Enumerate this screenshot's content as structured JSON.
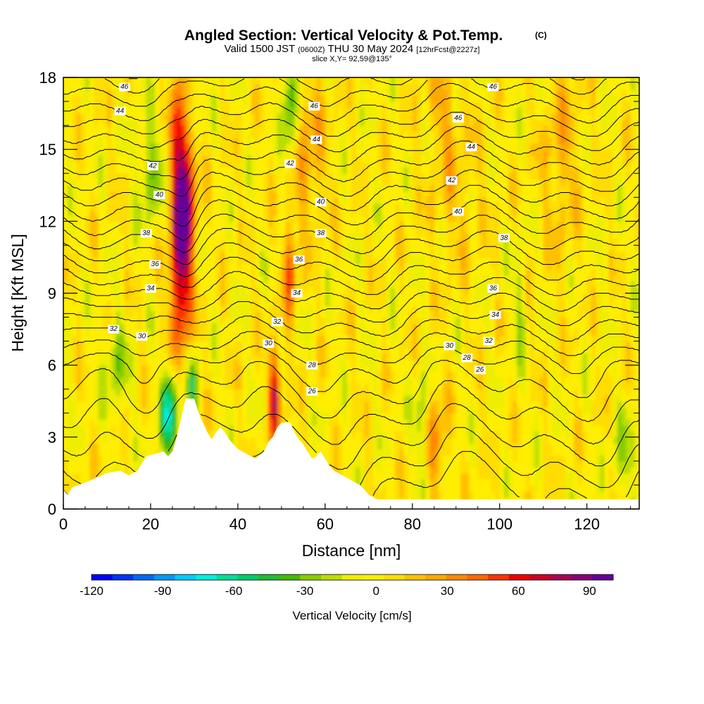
{
  "chart_data": {
    "type": "heatmap",
    "title": "Angled Section: Vertical Velocity & Pot.Temp.",
    "title_suffix": "(C)",
    "subtitle": {
      "valid_prefix": "Valid 1500 JST",
      "utc": "(0600Z)",
      "date": "THU 30 May 2024",
      "forecast": "[12hrFcst@2227z]"
    },
    "slice_label": "slice X,Y= 92,59@135°",
    "xlabel": "Distance [nm]",
    "ylabel": "Height [Kft MSL]",
    "xlim": [
      0,
      132
    ],
    "ylim": [
      0,
      18
    ],
    "x_ticks": [
      0,
      20,
      40,
      60,
      80,
      100,
      120
    ],
    "y_ticks": [
      0,
      3,
      6,
      9,
      12,
      15,
      18
    ],
    "colorbar": {
      "title": "Vertical Velocity [cm/s]",
      "range": [
        -120,
        100
      ],
      "tick_values": [
        -120,
        -90,
        -60,
        -30,
        0,
        30,
        60,
        90
      ],
      "colors": [
        "#0000ff",
        "#0033ff",
        "#0066ff",
        "#0099ff",
        "#00ccff",
        "#00eedd",
        "#00dd99",
        "#00cc66",
        "#22bb33",
        "#44bb00",
        "#88cc00",
        "#bbdd00",
        "#eeee00",
        "#ffee00",
        "#ffdd00",
        "#ffc000",
        "#ffa800",
        "#ff8800",
        "#ff6600",
        "#ff3300",
        "#ee0000",
        "#cc0022",
        "#aa0055",
        "#880077",
        "#660099"
      ]
    },
    "terrain": [
      [
        0,
        0.8
      ],
      [
        1,
        0.6
      ],
      [
        2,
        0.9
      ],
      [
        5,
        1.1
      ],
      [
        10,
        1.5
      ],
      [
        13,
        1.6
      ],
      [
        15,
        1.4
      ],
      [
        17,
        1.6
      ],
      [
        19,
        2.2
      ],
      [
        21,
        2.3
      ],
      [
        23,
        2.4
      ],
      [
        24,
        2.2
      ],
      [
        25,
        2.4
      ],
      [
        26,
        3.0
      ],
      [
        27,
        3.8
      ],
      [
        28,
        4.6
      ],
      [
        30,
        4.6
      ],
      [
        31,
        4.0
      ],
      [
        32,
        3.6
      ],
      [
        33,
        3.2
      ],
      [
        34,
        2.9
      ],
      [
        35,
        3.2
      ],
      [
        36,
        3.4
      ],
      [
        37,
        3.2
      ],
      [
        38,
        2.9
      ],
      [
        39,
        2.7
      ],
      [
        40,
        2.5
      ],
      [
        42,
        2.3
      ],
      [
        44,
        2.1
      ],
      [
        46,
        2.4
      ],
      [
        47,
        2.8
      ],
      [
        48,
        3.0
      ],
      [
        49,
        3.4
      ],
      [
        50,
        3.6
      ],
      [
        52,
        3.6
      ],
      [
        53,
        3.2
      ],
      [
        54,
        2.9
      ],
      [
        55,
        2.7
      ],
      [
        56,
        2.4
      ],
      [
        57,
        2.1
      ],
      [
        58,
        2.2
      ],
      [
        59,
        2.4
      ],
      [
        60,
        2.1
      ],
      [
        61,
        1.8
      ],
      [
        62,
        1.6
      ],
      [
        64,
        1.4
      ],
      [
        66,
        1.2
      ],
      [
        68,
        1.0
      ],
      [
        70,
        0.6
      ],
      [
        72,
        0.4
      ],
      [
        100,
        0.4
      ],
      [
        132,
        0.4
      ]
    ],
    "updrafts": [
      {
        "x": 27.5,
        "z": 13.5,
        "sx": 1.8,
        "sz": 3.5,
        "w": 95
      },
      {
        "x": 26.5,
        "z": 9.5,
        "sx": 1.5,
        "sz": 2.5,
        "w": 40
      },
      {
        "x": 29,
        "z": 17,
        "sx": 1.2,
        "sz": 1.5,
        "w": -45
      },
      {
        "x": 25,
        "z": 4,
        "sx": 1.0,
        "sz": 1.3,
        "w": -60
      },
      {
        "x": 23,
        "z": 4,
        "sx": 0.8,
        "sz": 1.2,
        "w": -40
      },
      {
        "x": 29.5,
        "z": 5,
        "sx": 0.8,
        "sz": 1.0,
        "w": -50
      },
      {
        "x": 48.5,
        "z": 4.8,
        "sx": 0.9,
        "sz": 1.4,
        "w": 75
      },
      {
        "x": 52,
        "z": 10,
        "sx": 1.0,
        "sz": 1.5,
        "w": 45
      },
      {
        "x": 52,
        "z": 17,
        "sx": 1.2,
        "sz": 2.0,
        "w": -45
      },
      {
        "x": 20,
        "z": 14,
        "sx": 2.0,
        "sz": 1.5,
        "w": -30
      },
      {
        "x": 12,
        "z": 6,
        "sx": 2.0,
        "sz": 1.5,
        "w": -25
      },
      {
        "x": 85.5,
        "z": 2.8,
        "sx": 1.8,
        "sz": 1.5,
        "w": 30
      },
      {
        "x": 82,
        "z": 3.5,
        "sx": 1.0,
        "sz": 1.5,
        "w": -30
      },
      {
        "x": 87,
        "z": 17,
        "sx": 2.5,
        "sz": 1.5,
        "w": 20
      },
      {
        "x": 104.5,
        "z": 8.5,
        "sx": 1.0,
        "sz": 1.8,
        "w": -20
      },
      {
        "x": 128.5,
        "z": 2.3,
        "sx": 1.8,
        "sz": 1.5,
        "w": -20
      },
      {
        "x": 56,
        "z": 15,
        "sx": 3.0,
        "sz": 2.5,
        "w": 25
      },
      {
        "x": 114,
        "z": 15,
        "sx": 3.0,
        "sz": 3.0,
        "w": 20
      },
      {
        "x": 90,
        "z": 13,
        "sx": 4.0,
        "sz": 2.0,
        "w": 15
      }
    ],
    "contour_labels": [
      {
        "text": "46",
        "x": 14,
        "z": 17.6
      },
      {
        "text": "44",
        "x": 13,
        "z": 16.6
      },
      {
        "text": "42",
        "x": 20.5,
        "z": 14.3
      },
      {
        "text": "40",
        "x": 22,
        "z": 13.1
      },
      {
        "text": "38",
        "x": 19,
        "z": 11.5
      },
      {
        "text": "36",
        "x": 21,
        "z": 10.2
      },
      {
        "text": "34",
        "x": 20,
        "z": 9.2
      },
      {
        "text": "32",
        "x": 11.5,
        "z": 7.5
      },
      {
        "text": "30",
        "x": 18,
        "z": 7.2
      },
      {
        "text": "46",
        "x": 57.5,
        "z": 16.8
      },
      {
        "text": "44",
        "x": 58,
        "z": 15.4
      },
      {
        "text": "42",
        "x": 52,
        "z": 14.4
      },
      {
        "text": "40",
        "x": 59,
        "z": 12.8
      },
      {
        "text": "38",
        "x": 59,
        "z": 11.5
      },
      {
        "text": "36",
        "x": 54,
        "z": 10.4
      },
      {
        "text": "34",
        "x": 53.5,
        "z": 9.0
      },
      {
        "text": "32",
        "x": 49,
        "z": 7.8
      },
      {
        "text": "30",
        "x": 47,
        "z": 6.9
      },
      {
        "text": "28",
        "x": 57,
        "z": 6.0
      },
      {
        "text": "26",
        "x": 57,
        "z": 4.9
      },
      {
        "text": "46",
        "x": 98.5,
        "z": 17.6
      },
      {
        "text": "46",
        "x": 90.5,
        "z": 16.3
      },
      {
        "text": "44",
        "x": 93.5,
        "z": 15.1
      },
      {
        "text": "42",
        "x": 89,
        "z": 13.7
      },
      {
        "text": "40",
        "x": 90.5,
        "z": 12.4
      },
      {
        "text": "38",
        "x": 101,
        "z": 11.3
      },
      {
        "text": "36",
        "x": 98.5,
        "z": 9.2
      },
      {
        "text": "34",
        "x": 99,
        "z": 8.1
      },
      {
        "text": "32",
        "x": 97.5,
        "z": 7.0
      },
      {
        "text": "30",
        "x": 88.5,
        "z": 6.8
      },
      {
        "text": "28",
        "x": 92.5,
        "z": 6.3
      },
      {
        "text": "26",
        "x": 95.5,
        "z": 5.8
      }
    ]
  }
}
